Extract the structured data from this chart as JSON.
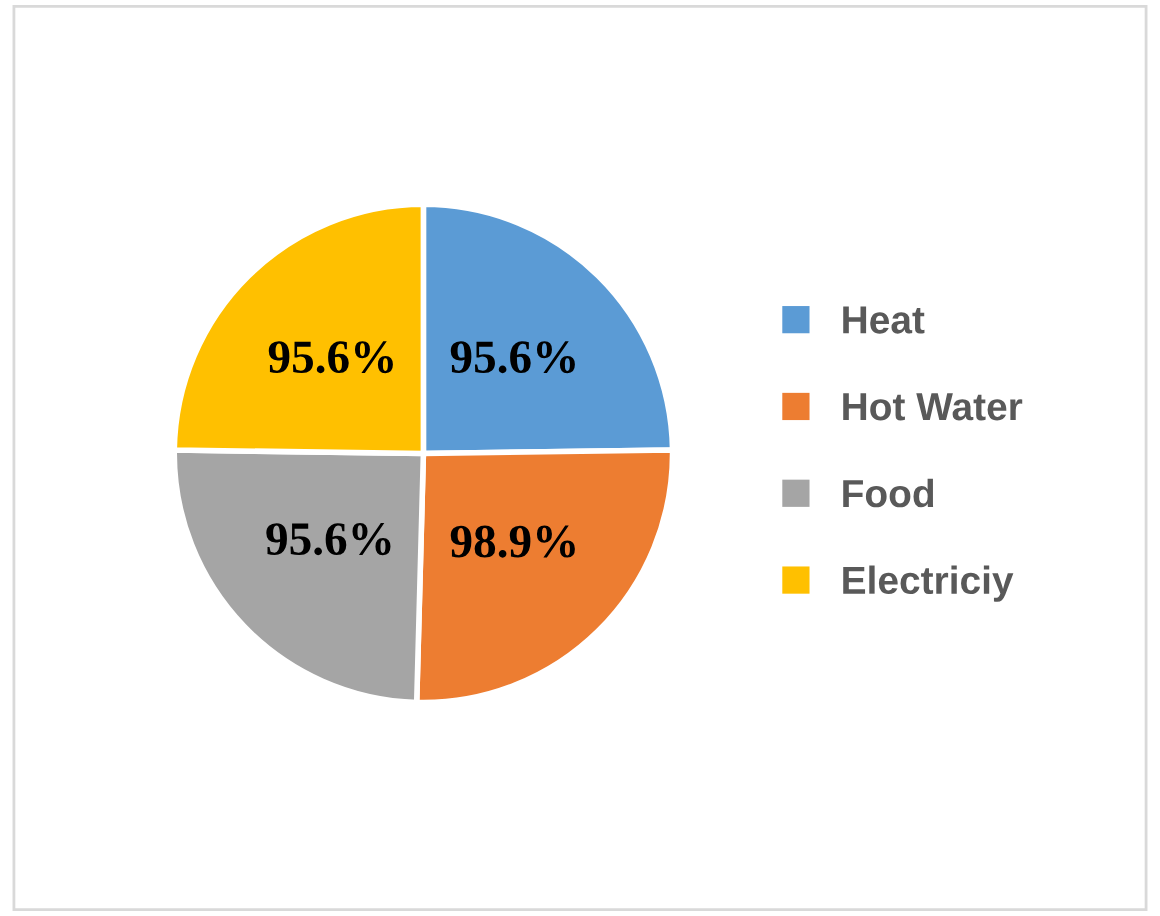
{
  "chart_data": {
    "type": "pie",
    "categories": [
      "Heat",
      "Hot Water",
      "Food",
      "Electriciy"
    ],
    "values": [
      95.6,
      98.9,
      95.6,
      95.6
    ],
    "value_labels": [
      "95.6%",
      "98.9%",
      "95.6%",
      "95.6%"
    ],
    "colors": [
      "#5b9bd5",
      "#ed7d31",
      "#a5a5a5",
      "#ffc000"
    ],
    "legend": "right"
  }
}
